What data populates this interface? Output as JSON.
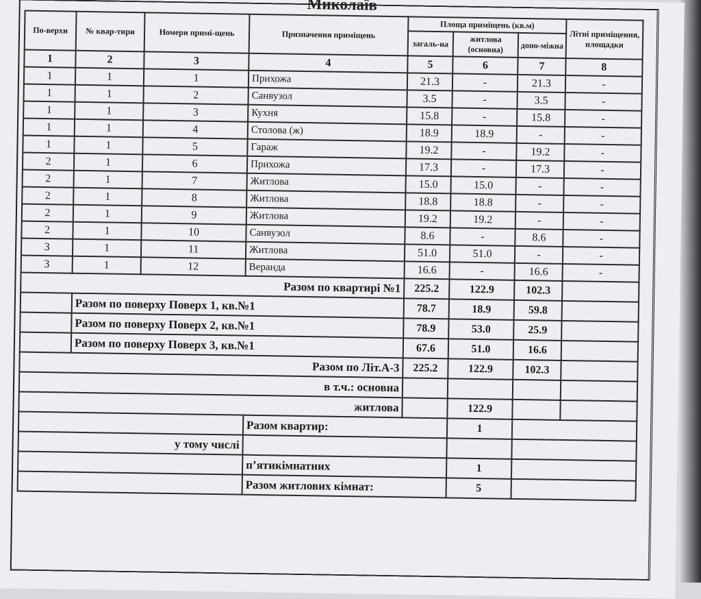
{
  "title": "Миколаїв",
  "headers": {
    "floors": "По-верхи",
    "apartment_no": "№ квар-тири",
    "room_numbers": "Номери примі-щень",
    "purpose": "Призначення приміщень",
    "area_group": "Площа приміщень (кв.м)",
    "total": "загаль-на",
    "living": "житлова (основна)",
    "auxiliary": "допо-міжна",
    "summer": "Літні приміщення, площадки"
  },
  "column_numbers": [
    "1",
    "2",
    "3",
    "4",
    "5",
    "6",
    "7",
    "8"
  ],
  "rows": [
    [
      "1",
      "1",
      "1",
      "Прихожа",
      "21.3",
      "-",
      "21.3",
      "-"
    ],
    [
      "1",
      "1",
      "2",
      "Санвузол",
      "3.5",
      "-",
      "3.5",
      "-"
    ],
    [
      "1",
      "1",
      "3",
      "Кухня",
      "15.8",
      "-",
      "15.8",
      "-"
    ],
    [
      "1",
      "1",
      "4",
      "Столова (ж)",
      "18.9",
      "18.9",
      "-",
      "-"
    ],
    [
      "1",
      "1",
      "5",
      "Гараж",
      "19.2",
      "-",
      "19.2",
      "-"
    ],
    [
      "2",
      "1",
      "6",
      "Прихожа",
      "17.3",
      "-",
      "17.3",
      "-"
    ],
    [
      "2",
      "1",
      "7",
      "Житлова",
      "15.0",
      "15.0",
      "-",
      "-"
    ],
    [
      "2",
      "1",
      "8",
      "Житлова",
      "18.8",
      "18.8",
      "-",
      "-"
    ],
    [
      "2",
      "1",
      "9",
      "Житлова",
      "19.2",
      "19.2",
      "-",
      "-"
    ],
    [
      "2",
      "1",
      "10",
      "Санвузол",
      "8.6",
      "-",
      "8.6",
      "-"
    ],
    [
      "3",
      "1",
      "11",
      "Житлова",
      "51.0",
      "51.0",
      "-",
      "-"
    ],
    [
      "3",
      "1",
      "12",
      "Веранда",
      "16.6",
      "-",
      "16.6",
      "-"
    ]
  ],
  "apartment_total": {
    "label": "Разом по квартирі №1",
    "total": "225.2",
    "living": "122.9",
    "auxiliary": "102.3"
  },
  "floor_totals": [
    {
      "label": "Разом по поверху Поверх 1, кв.№1",
      "total": "78.7",
      "living": "18.9",
      "auxiliary": "59.8"
    },
    {
      "label": "Разом по поверху Поверх 2, кв.№1",
      "total": "78.9",
      "living": "53.0",
      "auxiliary": "25.9"
    },
    {
      "label": "Разом по поверху Поверх 3, кв.№1",
      "total": "67.6",
      "living": "51.0",
      "auxiliary": "16.6"
    }
  ],
  "building_total": {
    "label": "Разом по Літ.А-3",
    "total": "225.2",
    "living": "122.9",
    "auxiliary": "102.3"
  },
  "including_main": "в т.ч.: основна",
  "living_label": "житлова",
  "living_value": "122.9",
  "apartments_total": {
    "label": "Разом квартир:",
    "value": "1"
  },
  "including": "у тому числі",
  "five_room": {
    "label": "п’ятикімнатних",
    "value": "1"
  },
  "living_rooms_total": {
    "label": "Разом житлових кімнат:",
    "value": "5"
  }
}
